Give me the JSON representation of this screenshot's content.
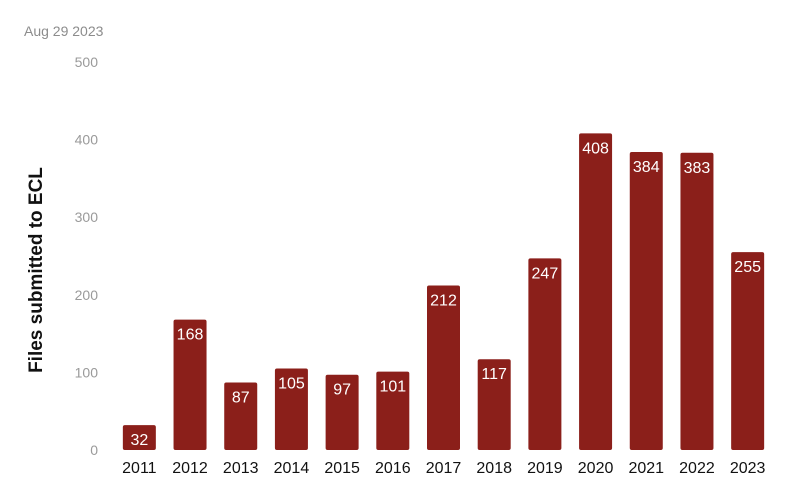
{
  "note": "Aug 29 2023",
  "colors": {
    "bar": "#8b1f1a",
    "bar_label": "#ffffff",
    "tick_y": "#9a9a9a",
    "tick_x": "#111111"
  },
  "chart_data": {
    "type": "bar",
    "categories": [
      "2011",
      "2012",
      "2013",
      "2014",
      "2015",
      "2016",
      "2017",
      "2018",
      "2019",
      "2020",
      "2021",
      "2022",
      "2023"
    ],
    "values": [
      32,
      168,
      87,
      105,
      97,
      101,
      212,
      117,
      247,
      408,
      384,
      383,
      255
    ],
    "title": "",
    "xlabel": "",
    "ylabel": "Files submitted to ECL",
    "ylim": [
      0,
      500
    ],
    "yticks": [
      0,
      100,
      200,
      300,
      400,
      500
    ],
    "grid": false,
    "data_labels": true
  }
}
